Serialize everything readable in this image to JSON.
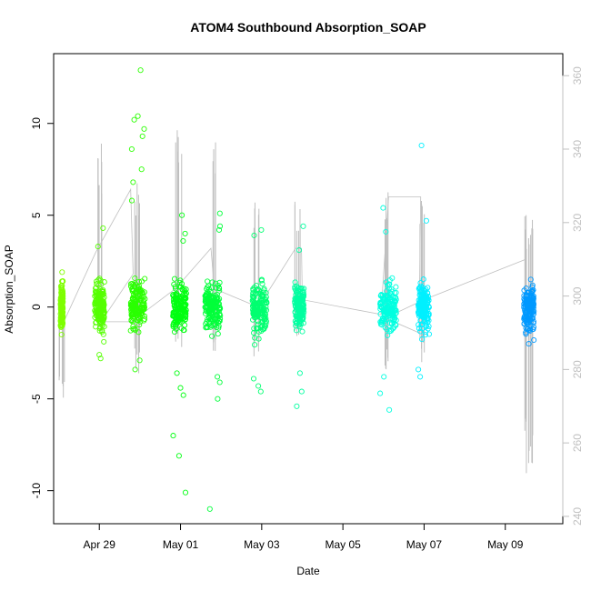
{
  "chart_data": {
    "type": "scatter",
    "title": "ATOM4 Southbound Absorption_SOAP",
    "xlabel": "Date",
    "ylabel": "Absorption_SOAP",
    "xlim": [
      "2022-04-27T21:00",
      "2022-05-10T10:00"
    ],
    "ylim": [
      -11.8,
      13.8
    ],
    "y2lim": [
      238,
      366
    ],
    "x_ticks": [
      {
        "date": "2022-04-29",
        "label": "Apr 29"
      },
      {
        "date": "2022-05-01",
        "label": "May 01"
      },
      {
        "date": "2022-05-03",
        "label": "May 03"
      },
      {
        "date": "2022-05-05",
        "label": "May 05"
      },
      {
        "date": "2022-05-07",
        "label": "May 07"
      },
      {
        "date": "2022-05-09",
        "label": "May 09"
      }
    ],
    "y_ticks": [
      -10,
      -5,
      0,
      5,
      10
    ],
    "y2_ticks": [
      240,
      260,
      280,
      300,
      320,
      340,
      360
    ],
    "grid": false,
    "marker": "open-circle",
    "clusters": [
      {
        "t0": "2022-04-28T01:05",
        "t1": "2022-04-28T02:30",
        "color": "#7fff00",
        "min": -1.5,
        "max": 1.9,
        "outliers": [
          1.9,
          -1.5,
          1.4
        ]
      },
      {
        "t0": "2022-04-28T21:20",
        "t1": "2022-04-29T03:00",
        "color": "#55ff00",
        "min": -2.8,
        "max": 4.3,
        "outliers": [
          4.3,
          3.3,
          -2.8,
          -2.6
        ]
      },
      {
        "t0": "2022-04-29T18:30",
        "t1": "2022-04-30T03:00",
        "color": "#2aff00",
        "min": -3.4,
        "max": 12.9,
        "outliers": [
          12.9,
          10.4,
          10.2,
          9.7,
          9.3,
          8.6,
          7.5,
          6.8,
          5.8,
          -3.4,
          -2.9
        ]
      },
      {
        "t0": "2022-04-30T19:30",
        "t1": "2022-05-01T03:30",
        "color": "#00ff10",
        "min": -10.1,
        "max": 5.0,
        "outliers": [
          5.0,
          4.0,
          3.6,
          -3.6,
          -4.4,
          -4.8,
          -7.0,
          -8.1,
          -10.1
        ]
      },
      {
        "t0": "2022-05-01T14:30",
        "t1": "2022-05-01T23:30",
        "color": "#00ff3a",
        "min": -11.0,
        "max": 5.1,
        "outliers": [
          5.1,
          4.4,
          4.2,
          -3.8,
          -4.1,
          -5.0,
          -11.0
        ]
      },
      {
        "t0": "2022-05-02T18:30",
        "t1": "2022-05-03T03:00",
        "color": "#00ff70",
        "min": -4.6,
        "max": 4.2,
        "outliers": [
          4.2,
          3.9,
          -4.3,
          -4.6,
          -3.9
        ]
      },
      {
        "t0": "2022-05-03T19:30",
        "t1": "2022-05-04T01:00",
        "color": "#00ffa0",
        "min": -5.4,
        "max": 4.4,
        "outliers": [
          4.4,
          3.1,
          -4.6,
          -5.4,
          -3.6
        ]
      },
      {
        "t0": "2022-05-05T22:00",
        "t1": "2022-05-06T07:30",
        "color": "#00ffe0",
        "min": -5.6,
        "max": 5.4,
        "outliers": [
          5.4,
          4.1,
          -4.7,
          -5.6,
          -3.8
        ]
      },
      {
        "t0": "2022-05-06T20:30",
        "t1": "2022-05-07T03:00",
        "color": "#00f0ff",
        "min": -3.8,
        "max": 8.8,
        "outliers": [
          8.8,
          4.7,
          -3.4,
          -3.8
        ]
      },
      {
        "t0": "2022-05-09T11:00",
        "t1": "2022-05-09T17:00",
        "color": "#0099ff",
        "min": -2.0,
        "max": 1.6,
        "outliers": [
          1.5,
          -1.8,
          -2.0
        ]
      }
    ],
    "secondary_series": {
      "color": "#bfbfbf",
      "baseline": 300,
      "spikes": [
        {
          "t": "2022-04-28T01:30",
          "low": 268,
          "high": 302
        },
        {
          "t": "2022-04-29T00:00",
          "low": 290,
          "high": 345
        },
        {
          "t": "2022-04-29T22:00",
          "low": 278,
          "high": 332
        },
        {
          "t": "2022-04-30T23:00",
          "low": 286,
          "high": 348
        },
        {
          "t": "2022-05-01T19:00",
          "low": 285,
          "high": 346
        },
        {
          "t": "2022-05-02T21:00",
          "low": 283,
          "high": 332
        },
        {
          "t": "2022-05-03T21:30",
          "low": 288,
          "high": 329
        },
        {
          "t": "2022-05-06T02:00",
          "low": 277,
          "high": 330
        },
        {
          "t": "2022-05-06T23:00",
          "low": 281,
          "high": 326
        },
        {
          "t": "2022-05-09T13:00",
          "low": 247,
          "high": 323
        },
        {
          "t": "2022-05-09T15:00",
          "low": 252,
          "high": 321
        }
      ],
      "path": [
        {
          "t": "2022-04-28T02:00",
          "v": 292
        },
        {
          "t": "2022-04-28T22:00",
          "v": 312
        },
        {
          "t": "2022-04-29T18:30",
          "v": 329
        },
        {
          "t": "2022-04-29T20:00",
          "v": 306
        },
        {
          "t": "2022-04-29T01:00",
          "v": 293
        },
        {
          "t": "2022-04-29T19:00",
          "v": 293
        },
        {
          "t": "2022-04-30T21:00",
          "v": 302
        },
        {
          "t": "2022-05-01T18:00",
          "v": 313
        },
        {
          "t": "2022-05-01T20:00",
          "v": 302
        },
        {
          "t": "2022-05-02T22:00",
          "v": 297
        },
        {
          "t": "2022-05-03T20:00",
          "v": 313
        },
        {
          "t": "2022-05-03T23:30",
          "v": 313
        },
        {
          "t": "2022-05-04T00:00",
          "v": 299
        },
        {
          "t": "2022-05-05T22:30",
          "v": 295
        },
        {
          "t": "2022-05-06T03:00",
          "v": 327
        },
        {
          "t": "2022-05-06T22:00",
          "v": 327
        },
        {
          "t": "2022-05-06T21:00",
          "v": 290
        },
        {
          "t": "2022-05-06T01:00",
          "v": 294
        },
        {
          "t": "2022-05-07T00:00",
          "v": 299
        },
        {
          "t": "2022-05-09T12:00",
          "v": 310
        }
      ]
    }
  }
}
